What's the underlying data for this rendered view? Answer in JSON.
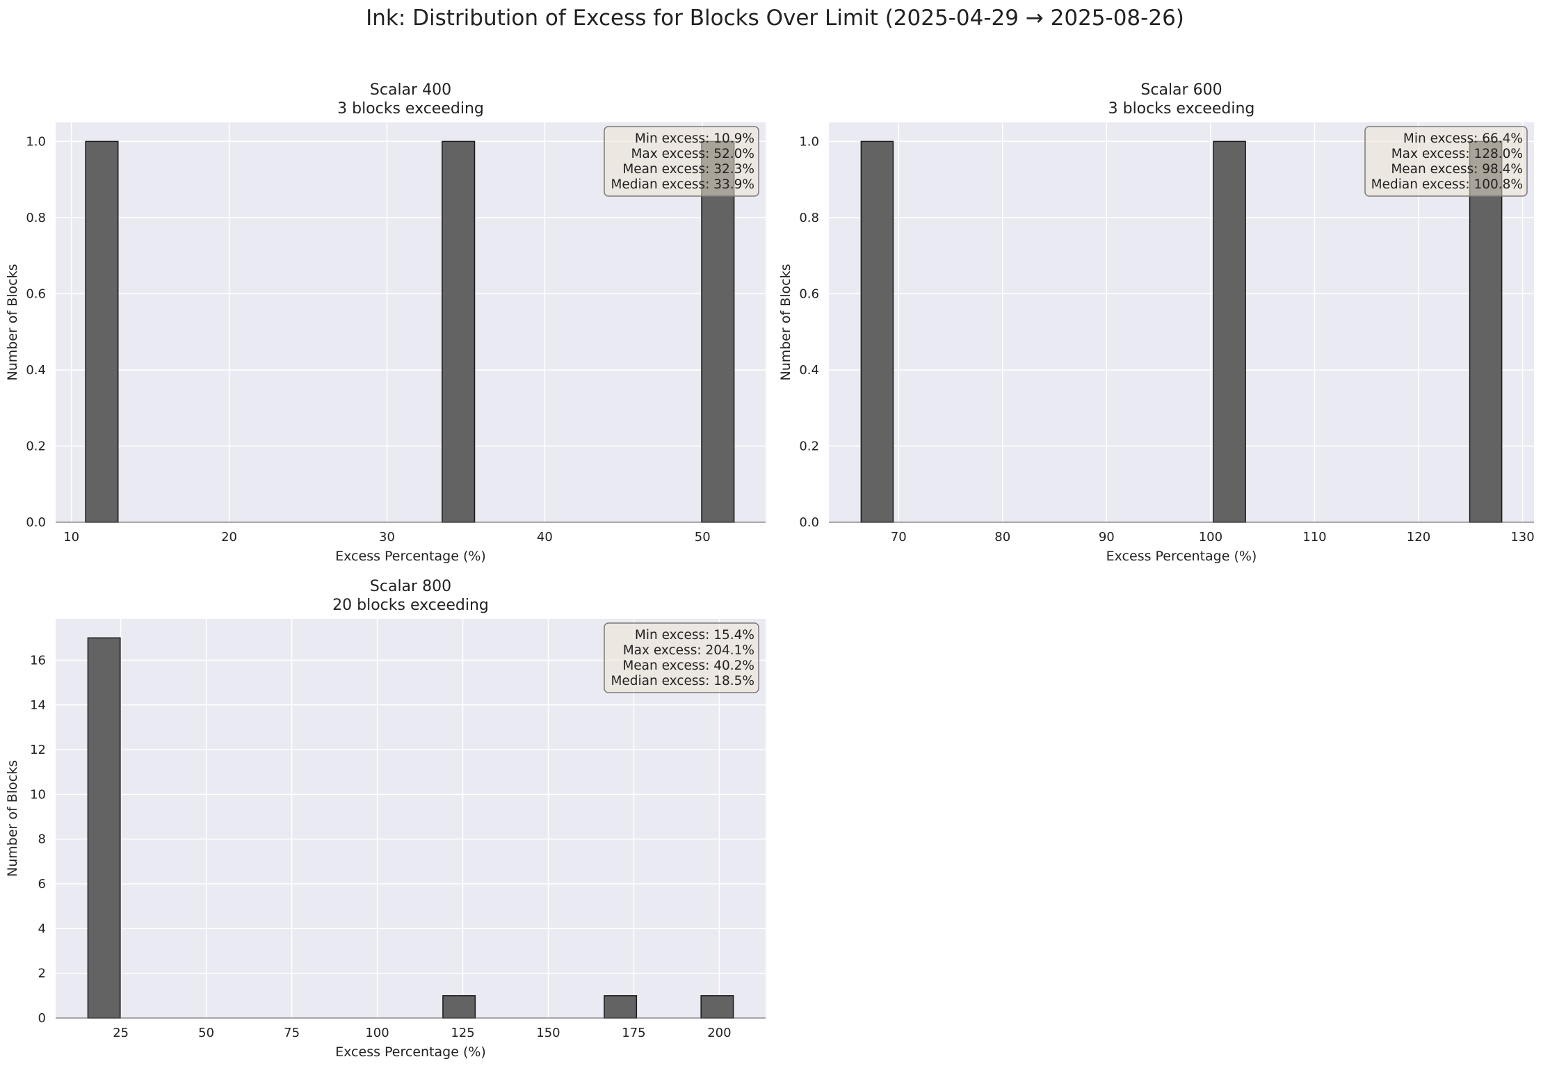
{
  "figure": {
    "title": "Ink: Distribution of Excess for Blocks Over Limit (2025-04-29 → 2025-08-26)"
  },
  "colors": {
    "plot_bg": "#eaeaf2",
    "bar_fill": "#636363",
    "bar_edge": "#1a1a1a",
    "grid": "#ffffff",
    "stats_box_fill": "#efe4d2",
    "stats_box_edge": "#7a7a7a"
  },
  "chart_data": [
    {
      "type": "bar",
      "title": "Scalar 400",
      "subtitle": "3 blocks exceeding",
      "xlabel": "Excess Percentage (%)",
      "ylabel": "Number of Blocks",
      "xlim": [
        9,
        54
      ],
      "ylim": [
        0,
        1.05
      ],
      "xticks": [
        10,
        20,
        30,
        40,
        50
      ],
      "yticks": [
        0.0,
        0.2,
        0.4,
        0.6,
        0.8,
        1.0
      ],
      "ytick_labels": [
        "0.0",
        "0.2",
        "0.4",
        "0.6",
        "0.8",
        "1.0"
      ],
      "bins": [
        {
          "x0": 10.9,
          "x1": 12.955,
          "count": 1
        },
        {
          "x0": 33.5,
          "x1": 35.555,
          "count": 1
        },
        {
          "x0": 49.945,
          "x1": 52.0,
          "count": 1
        }
      ],
      "stats": [
        "Min excess: 10.9%",
        "Max excess: 52.0%",
        "Mean excess: 32.3%",
        "Median excess: 33.9%"
      ],
      "grid": true
    },
    {
      "type": "bar",
      "title": "Scalar 600",
      "subtitle": "3 blocks exceeding",
      "xlabel": "Excess Percentage (%)",
      "ylabel": "Number of Blocks",
      "xlim": [
        63.3,
        131.1
      ],
      "ylim": [
        0,
        1.05
      ],
      "xticks": [
        70,
        80,
        90,
        100,
        110,
        120,
        130
      ],
      "yticks": [
        0.0,
        0.2,
        0.4,
        0.6,
        0.8,
        1.0
      ],
      "ytick_labels": [
        "0.0",
        "0.2",
        "0.4",
        "0.6",
        "0.8",
        "1.0"
      ],
      "bins": [
        {
          "x0": 66.4,
          "x1": 69.48,
          "count": 1
        },
        {
          "x0": 100.28,
          "x1": 103.36,
          "count": 1
        },
        {
          "x0": 124.92,
          "x1": 128.0,
          "count": 1
        }
      ],
      "stats": [
        "Min excess: 66.4%",
        "Max excess: 128.0%",
        "Mean excess: 98.4%",
        "Median excess: 100.8%"
      ],
      "grid": true
    },
    {
      "type": "bar",
      "title": "Scalar 800",
      "subtitle": "20 blocks exceeding",
      "xlabel": "Excess Percentage (%)",
      "ylabel": "Number of Blocks",
      "xlim": [
        5.96,
        213.54
      ],
      "ylim": [
        0,
        17.85
      ],
      "xticks": [
        25,
        50,
        75,
        100,
        125,
        150,
        175,
        200
      ],
      "yticks": [
        0,
        2,
        4,
        6,
        8,
        10,
        12,
        14,
        16
      ],
      "ytick_labels": [
        "0",
        "2",
        "4",
        "6",
        "8",
        "10",
        "12",
        "14",
        "16"
      ],
      "bins": [
        {
          "x0": 15.4,
          "x1": 24.835,
          "count": 17
        },
        {
          "x0": 119.185,
          "x1": 128.62,
          "count": 1
        },
        {
          "x0": 166.36,
          "x1": 175.795,
          "count": 1
        },
        {
          "x0": 194.665,
          "x1": 204.1,
          "count": 1
        }
      ],
      "stats": [
        "Min excess: 15.4%",
        "Max excess: 204.1%",
        "Mean excess: 40.2%",
        "Median excess: 18.5%"
      ],
      "grid": true
    }
  ]
}
